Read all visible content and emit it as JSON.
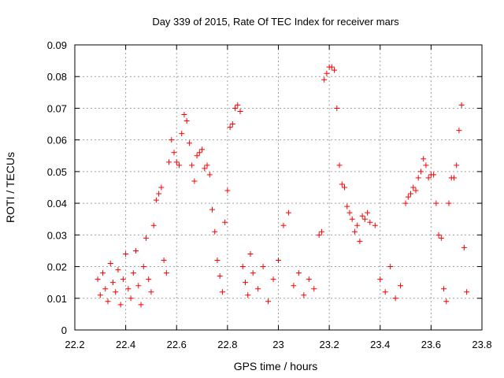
{
  "chart_data": {
    "type": "scatter",
    "title": "Day 339 of 2015, Rate Of TEC Index for receiver mars",
    "xlabel": "GPS time / hours",
    "ylabel": "ROTI / TECUs",
    "xlim": [
      22.2,
      23.8
    ],
    "ylim": [
      0,
      0.09
    ],
    "x_ticks": [
      22.2,
      22.4,
      22.6,
      22.8,
      23.0,
      23.2,
      23.4,
      23.6,
      23.8
    ],
    "x_tick_labels": [
      "22.2",
      "22.4",
      "22.6",
      "22.8",
      "23",
      "23.2",
      "23.4",
      "23.6",
      "23.8"
    ],
    "y_ticks": [
      0,
      0.01,
      0.02,
      0.03,
      0.04,
      0.05,
      0.06,
      0.07,
      0.08,
      0.09
    ],
    "y_tick_labels": [
      "0",
      "0.01",
      "0.02",
      "0.03",
      "0.04",
      "0.05",
      "0.06",
      "0.07",
      "0.08",
      "0.09"
    ],
    "grid": true,
    "marker": "+",
    "color": "#ff0000",
    "series": [
      {
        "name": "ROTI",
        "points": [
          [
            22.29,
            0.016
          ],
          [
            22.3,
            0.011
          ],
          [
            22.31,
            0.018
          ],
          [
            22.32,
            0.013
          ],
          [
            22.33,
            0.009
          ],
          [
            22.34,
            0.021
          ],
          [
            22.35,
            0.015
          ],
          [
            22.36,
            0.012
          ],
          [
            22.37,
            0.019
          ],
          [
            22.38,
            0.008
          ],
          [
            22.39,
            0.016
          ],
          [
            22.4,
            0.024
          ],
          [
            22.41,
            0.013
          ],
          [
            22.42,
            0.01
          ],
          [
            22.43,
            0.018
          ],
          [
            22.44,
            0.025
          ],
          [
            22.45,
            0.014
          ],
          [
            22.46,
            0.008
          ],
          [
            22.47,
            0.02
          ],
          [
            22.48,
            0.029
          ],
          [
            22.49,
            0.016
          ],
          [
            22.5,
            0.012
          ],
          [
            22.51,
            0.033
          ],
          [
            22.52,
            0.041
          ],
          [
            22.53,
            0.043
          ],
          [
            22.54,
            0.045
          ],
          [
            22.55,
            0.022
          ],
          [
            22.56,
            0.018
          ],
          [
            22.57,
            0.053
          ],
          [
            22.58,
            0.06
          ],
          [
            22.59,
            0.056
          ],
          [
            22.6,
            0.053
          ],
          [
            22.61,
            0.052
          ],
          [
            22.62,
            0.062
          ],
          [
            22.63,
            0.068
          ],
          [
            22.64,
            0.066
          ],
          [
            22.65,
            0.059
          ],
          [
            22.66,
            0.052
          ],
          [
            22.67,
            0.047
          ],
          [
            22.68,
            0.055
          ],
          [
            22.69,
            0.056
          ],
          [
            22.7,
            0.057
          ],
          [
            22.71,
            0.051
          ],
          [
            22.72,
            0.052
          ],
          [
            22.73,
            0.049
          ],
          [
            22.74,
            0.038
          ],
          [
            22.75,
            0.031
          ],
          [
            22.76,
            0.022
          ],
          [
            22.77,
            0.017
          ],
          [
            22.78,
            0.012
          ],
          [
            22.79,
            0.034
          ],
          [
            22.8,
            0.044
          ],
          [
            22.81,
            0.064
          ],
          [
            22.82,
            0.065
          ],
          [
            22.83,
            0.07
          ],
          [
            22.84,
            0.071
          ],
          [
            22.85,
            0.069
          ],
          [
            22.86,
            0.02
          ],
          [
            22.87,
            0.015
          ],
          [
            22.88,
            0.011
          ],
          [
            22.89,
            0.024
          ],
          [
            22.9,
            0.018
          ],
          [
            22.92,
            0.013
          ],
          [
            22.94,
            0.02
          ],
          [
            22.96,
            0.009
          ],
          [
            22.98,
            0.016
          ],
          [
            23.0,
            0.022
          ],
          [
            23.02,
            0.033
          ],
          [
            23.04,
            0.037
          ],
          [
            23.06,
            0.014
          ],
          [
            23.08,
            0.018
          ],
          [
            23.1,
            0.011
          ],
          [
            23.12,
            0.016
          ],
          [
            23.14,
            0.013
          ],
          [
            23.16,
            0.03
          ],
          [
            23.17,
            0.031
          ],
          [
            23.18,
            0.079
          ],
          [
            23.19,
            0.081
          ],
          [
            23.2,
            0.083
          ],
          [
            23.21,
            0.083
          ],
          [
            23.22,
            0.082
          ],
          [
            23.23,
            0.07
          ],
          [
            23.24,
            0.052
          ],
          [
            23.25,
            0.046
          ],
          [
            23.26,
            0.045
          ],
          [
            23.27,
            0.039
          ],
          [
            23.28,
            0.037
          ],
          [
            23.29,
            0.035
          ],
          [
            23.3,
            0.031
          ],
          [
            23.31,
            0.033
          ],
          [
            23.32,
            0.028
          ],
          [
            23.33,
            0.036
          ],
          [
            23.34,
            0.035
          ],
          [
            23.35,
            0.037
          ],
          [
            23.36,
            0.034
          ],
          [
            23.38,
            0.033
          ],
          [
            23.4,
            0.016
          ],
          [
            23.42,
            0.012
          ],
          [
            23.44,
            0.02
          ],
          [
            23.46,
            0.01
          ],
          [
            23.48,
            0.014
          ],
          [
            23.5,
            0.04
          ],
          [
            23.51,
            0.042
          ],
          [
            23.52,
            0.043
          ],
          [
            23.53,
            0.045
          ],
          [
            23.54,
            0.044
          ],
          [
            23.55,
            0.048
          ],
          [
            23.56,
            0.05
          ],
          [
            23.57,
            0.054
          ],
          [
            23.58,
            0.052
          ],
          [
            23.59,
            0.048
          ],
          [
            23.6,
            0.049
          ],
          [
            23.61,
            0.049
          ],
          [
            23.62,
            0.04
          ],
          [
            23.63,
            0.03
          ],
          [
            23.64,
            0.029
          ],
          [
            23.65,
            0.013
          ],
          [
            23.66,
            0.009
          ],
          [
            23.67,
            0.04
          ],
          [
            23.68,
            0.048
          ],
          [
            23.69,
            0.048
          ],
          [
            23.7,
            0.052
          ],
          [
            23.71,
            0.063
          ],
          [
            23.72,
            0.071
          ],
          [
            23.73,
            0.026
          ],
          [
            23.74,
            0.012
          ]
        ]
      }
    ]
  }
}
